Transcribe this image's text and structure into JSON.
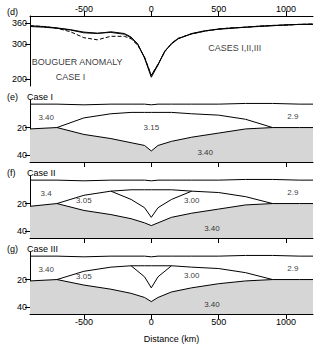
{
  "chart_data": [
    {
      "type": "line",
      "panel_label": "(d)",
      "x": [
        -900,
        -800,
        -700,
        -600,
        -500,
        -400,
        -300,
        -200,
        -150,
        -100,
        -50,
        0,
        50,
        100,
        150,
        200,
        300,
        400,
        500,
        600,
        700,
        800,
        900,
        1000,
        1100,
        1200
      ],
      "series": [
        {
          "color": "#000000",
          "line_style": "solid",
          "values": [
            350,
            348,
            345,
            340,
            332,
            330,
            335,
            330,
            320,
            300,
            260,
            205,
            240,
            280,
            300,
            315,
            330,
            338,
            342,
            345,
            348,
            350,
            352,
            355,
            356,
            356
          ]
        },
        {
          "color": "#000000",
          "line_style": "solid",
          "values": [
            352,
            350,
            346,
            341,
            334,
            331,
            333,
            328,
            318,
            298,
            262,
            210,
            242,
            278,
            302,
            316,
            329,
            337,
            343,
            346,
            348,
            351,
            353,
            354,
            356,
            357
          ]
        },
        {
          "color": "#000000",
          "line_style": "dashed",
          "values": [
            352,
            350,
            345,
            335,
            318,
            312,
            322,
            322,
            315,
            296,
            262,
            210,
            242,
            278,
            302,
            316,
            329,
            337,
            343,
            346,
            348,
            351,
            353,
            354,
            356,
            357
          ]
        }
      ],
      "annotations": [
        {
          "text": "BOUGUER ANOMALY",
          "x": -550,
          "y": 250
        },
        {
          "text": "CASE I",
          "x": -600,
          "y": 205
        },
        {
          "text": "CASES I,II,III",
          "x": 620,
          "y": 290
        }
      ],
      "xlim": [
        -900,
        1200
      ],
      "xticks": [
        -500,
        0,
        500,
        1000
      ],
      "ylim": [
        180,
        380
      ],
      "yticks": [
        200,
        300,
        360
      ],
      "tick_labels": true
    },
    {
      "type": "line",
      "panel_label": "(e)",
      "title": "Case I",
      "x": [
        -900,
        -700,
        -500,
        -300,
        -150,
        -50,
        0,
        50,
        150,
        300,
        500,
        700,
        900,
        1100,
        1200
      ],
      "series": [
        {
          "color": "#000000",
          "values": [
            3,
            3,
            3.5,
            3,
            3,
            3,
            3.5,
            3,
            3,
            3,
            3,
            2.5,
            2.5,
            3,
            3
          ]
        },
        {
          "color": "#000000",
          "values": [
            null,
            20,
            13,
            10,
            9,
            9,
            9,
            9,
            9,
            10,
            11,
            14,
            20,
            null,
            null
          ]
        },
        {
          "color": "#000000",
          "type": "area",
          "values": [
            21,
            20,
            25,
            28,
            31,
            33,
            37,
            33,
            30,
            27,
            24,
            21,
            20,
            20,
            20
          ]
        }
      ],
      "annotations": [
        {
          "text": "3.40",
          "x": -780,
          "y": 13
        },
        {
          "text": "3.15",
          "x": 0,
          "y": 20
        },
        {
          "text": "3.40",
          "x": 400,
          "y": 38
        },
        {
          "text": "2.9",
          "x": 1050,
          "y": 12
        }
      ],
      "xlim": [
        -900,
        1200
      ],
      "xticks": [
        -500,
        0,
        500,
        1000
      ],
      "ylim": [
        45,
        0
      ],
      "yticks": [
        20,
        40
      ],
      "tick_labels": "y"
    },
    {
      "type": "line",
      "panel_label": "(f)",
      "title": "Case II",
      "x": [
        -900,
        -700,
        -500,
        -300,
        -150,
        -50,
        0,
        50,
        150,
        300,
        500,
        700,
        900,
        1100,
        1200
      ],
      "series": [
        {
          "color": "#000000",
          "values": [
            3,
            3,
            3.5,
            3,
            3,
            3,
            3.5,
            3,
            3,
            3,
            3,
            2.5,
            2.5,
            3,
            3
          ]
        },
        {
          "color": "#000000",
          "values": [
            null,
            20,
            14,
            11,
            10,
            10,
            10,
            10,
            10,
            11,
            12,
            15,
            20,
            null,
            null
          ]
        },
        {
          "color": "#000000",
          "values": [
            null,
            null,
            null,
            11,
            17,
            23,
            30,
            23,
            17,
            11,
            null,
            null,
            null,
            null,
            null
          ]
        },
        {
          "color": "#000000",
          "type": "area",
          "values": [
            22,
            20,
            25,
            28,
            31,
            34,
            36,
            34,
            30,
            27,
            24,
            21,
            20,
            20,
            20
          ]
        }
      ],
      "annotations": [
        {
          "text": "3.4",
          "x": -780,
          "y": 13
        },
        {
          "text": "3.05",
          "x": -500,
          "y": 18
        },
        {
          "text": "3.00",
          "x": 300,
          "y": 18
        },
        {
          "text": "3.40",
          "x": 450,
          "y": 38
        },
        {
          "text": "2.9",
          "x": 1050,
          "y": 12
        }
      ],
      "xlim": [
        -900,
        1200
      ],
      "xticks": [
        -500,
        0,
        500,
        1000
      ],
      "ylim": [
        45,
        0
      ],
      "yticks": [
        20,
        40
      ],
      "tick_labels": "y"
    },
    {
      "type": "line",
      "panel_label": "(g)",
      "title": "Case III",
      "x": [
        -900,
        -700,
        -500,
        -300,
        -150,
        -50,
        0,
        50,
        150,
        300,
        500,
        700,
        900,
        1100,
        1200
      ],
      "series": [
        {
          "color": "#000000",
          "values": [
            3,
            3,
            3.5,
            3,
            3,
            3,
            3.5,
            3,
            3,
            3,
            3,
            2.5,
            2.5,
            3,
            3
          ]
        },
        {
          "color": "#000000",
          "values": [
            null,
            20,
            14,
            11,
            10,
            10,
            10,
            10,
            10,
            11,
            12,
            15,
            20,
            null,
            null
          ]
        },
        {
          "color": "#000000",
          "values": [
            null,
            null,
            null,
            null,
            10,
            18,
            26,
            18,
            10,
            null,
            null,
            null,
            null,
            null,
            null
          ]
        },
        {
          "color": "#000000",
          "type": "area",
          "values": [
            21,
            20,
            24,
            27,
            30,
            33,
            36,
            33,
            29,
            26,
            23,
            21,
            20,
            20,
            20
          ]
        }
      ],
      "annotations": [
        {
          "text": "3.40",
          "x": -780,
          "y": 13
        },
        {
          "text": "3.05",
          "x": -500,
          "y": 18
        },
        {
          "text": "3.00",
          "x": 300,
          "y": 17
        },
        {
          "text": "3.40",
          "x": 450,
          "y": 38
        },
        {
          "text": "2.9",
          "x": 1050,
          "y": 12
        }
      ],
      "xlim": [
        -900,
        1200
      ],
      "xticks": [
        -500,
        0,
        500,
        1000
      ],
      "ylim": [
        45,
        0
      ],
      "yticks": [
        20,
        40
      ],
      "tick_labels": true,
      "xlabel": "Distance (km)"
    }
  ]
}
